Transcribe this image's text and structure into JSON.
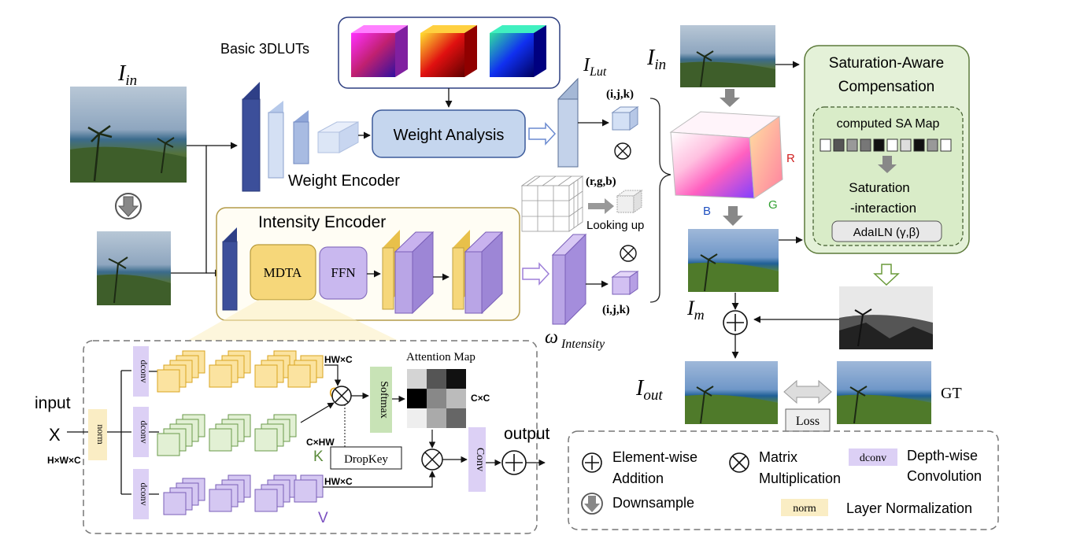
{
  "labels": {
    "basic_luts": "Basic 3DLUTs",
    "i_in_left": "I",
    "i_in_left_sub": "in",
    "i_in_right": "I",
    "i_in_right_sub": "in",
    "i_lut": "I",
    "i_lut_sub": "Lut",
    "weight_analysis": "Weight Analysis",
    "weight_encoder": "Weight Encoder",
    "intensity_encoder": "Intensity Encoder",
    "mdta": "MDTA",
    "ffn": "FFN",
    "ijk_top": "(i,j,k)",
    "ijk_bottom": "(i,j,k)",
    "rgb": "(r,g,b)",
    "looking_up": "Looking up",
    "omega": "ω",
    "omega_sub": "Intensity",
    "axis_r": "R",
    "axis_g": "G",
    "axis_b": "B",
    "sa_title_1": "Saturation-Aware",
    "sa_title_2": "Compensation",
    "sa_map": "computed SA Map",
    "sat_inter_1": "Saturation",
    "sat_inter_2": "-interaction",
    "adaln": "AdaILN (γ,β)",
    "i_m": "I",
    "i_m_sub": "m",
    "i_out": "I",
    "i_out_sub": "out",
    "gt": "GT",
    "loss": "Loss",
    "input": "input",
    "x": "X",
    "hwc_in": "H×W×C",
    "norm": "norm",
    "dconv_q": "dconv",
    "dconv_k": "dconv",
    "dconv_v": "dconv",
    "q": "Q",
    "k": "K",
    "v": "V",
    "hwc_q": "HW×C",
    "chw_k": "C×HW",
    "hwc_v": "HW×C",
    "softmax": "Softmax",
    "attention_map": "Attention Map",
    "cxc": "C×C",
    "dropkey": "DropKey",
    "conv": "Conv",
    "output": "output"
  },
  "legend": {
    "add_1": "Element-wise",
    "add_2": "Addition",
    "mul_1": "Matrix",
    "mul_2": "Multiplication",
    "dconv_chip": "dconv",
    "dconv_1": "Depth-wise",
    "dconv_2": "Convolution",
    "down": "Downsample",
    "norm_chip": "norm",
    "norm_desc": "Layer Normalization"
  },
  "colors": {
    "weight_blue": "#3c4f9a",
    "light_blue": "#c5d6ee",
    "yellow": "#f6d77a",
    "purple": "#b9a5e6",
    "green_panel": "#e4f1d8",
    "green_border": "#5c7a3a",
    "encoder_border": "#b39b4a"
  }
}
